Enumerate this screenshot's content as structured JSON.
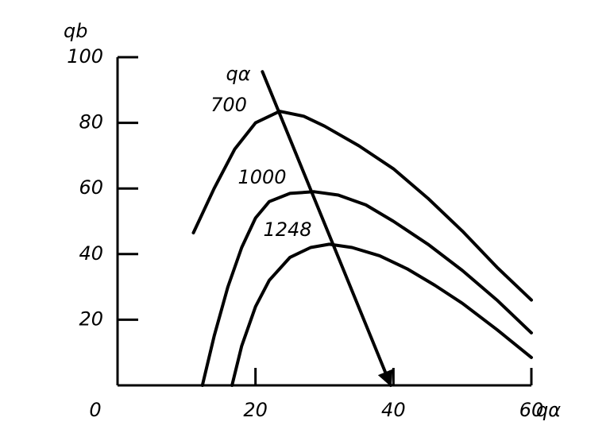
{
  "chart_data": {
    "type": "line",
    "x_label": "qα",
    "y_label": "qb",
    "xlim": [
      0,
      60
    ],
    "ylim": [
      0,
      100
    ],
    "xticks": [
      0,
      20,
      40,
      60
    ],
    "yticks": [
      20,
      40,
      60,
      80,
      100
    ],
    "series": [
      {
        "name": "700",
        "color": "#000000",
        "x": [
          11,
          14,
          17,
          20,
          23.5,
          27,
          30,
          35,
          40,
          45,
          50,
          55,
          60
        ],
        "values": [
          46.5,
          60,
          72,
          80,
          83.5,
          82,
          79,
          73,
          66,
          57,
          47,
          36,
          26
        ]
      },
      {
        "name": "1000",
        "color": "#000000",
        "x": [
          12.3,
          14,
          16,
          18,
          20,
          22,
          25,
          28.5,
          32,
          36,
          40,
          45,
          50,
          55,
          60
        ],
        "values": [
          0,
          15,
          30,
          42,
          51,
          56,
          58.5,
          59,
          58,
          55,
          50,
          43,
          35,
          26,
          16
        ]
      },
      {
        "name": "1248",
        "color": "#000000",
        "x": [
          16.6,
          18,
          20,
          22,
          25,
          28,
          30.7,
          34,
          38,
          42,
          46,
          50,
          55,
          60
        ],
        "values": [
          0,
          12,
          24,
          32,
          39,
          42,
          43,
          42,
          39.5,
          35.5,
          30.5,
          25,
          17,
          8.5
        ]
      },
      {
        "name": "qα",
        "color": "#000000",
        "x": [
          21,
          39.6
        ],
        "values": [
          95.6,
          0
        ]
      }
    ]
  }
}
